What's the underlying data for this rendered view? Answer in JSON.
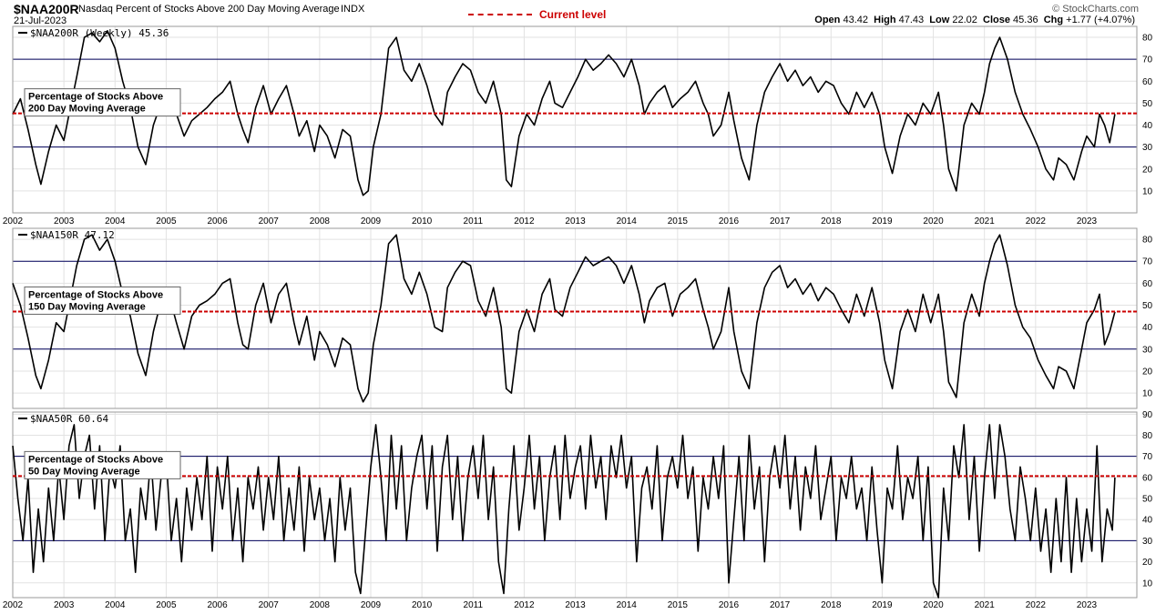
{
  "header": {
    "symbol": "$NAA200R",
    "description": "Nasdaq Percent of Stocks Above 200 Day Moving Average",
    "exchange": "INDX",
    "date": "21-Jul-2023",
    "legend_label": "Current level",
    "copyright": "© StockCharts.com",
    "quote": {
      "open_label": "Open",
      "open": "43.42",
      "high_label": "High",
      "high": "47.43",
      "low_label": "Low",
      "low": "22.02",
      "close_label": "Close",
      "close": "45.36",
      "chg_label": "Chg",
      "chg": "+1.77 (+4.07%)"
    }
  },
  "colors": {
    "current_level": "#cc0000",
    "level_line": "#00005a",
    "series": "#000000"
  },
  "chart_data": [
    {
      "type": "line",
      "panel_label": "$NAA200R (Weekly) 45.36",
      "annotation": [
        "Percentage of Stocks Above",
        "200 Day Moving Average"
      ],
      "ylim": [
        0,
        85
      ],
      "yticks": [
        10,
        20,
        30,
        40,
        50,
        60,
        70,
        80
      ],
      "reference_lines": [
        30,
        70
      ],
      "current_level": 45.36,
      "x_tick_labels": [
        "2002",
        "2003",
        "2004",
        "2005",
        "2006",
        "2007",
        "2008",
        "2009",
        "2010",
        "2011",
        "2012",
        "2013",
        "2014",
        "2015",
        "2016",
        "2017",
        "2018",
        "2019",
        "2020",
        "2021",
        "2022",
        "2023"
      ],
      "x": [
        2002.0,
        2002.15,
        2002.3,
        2002.45,
        2002.55,
        2002.7,
        2002.85,
        2003.0,
        2003.1,
        2003.25,
        2003.4,
        2003.55,
        2003.7,
        2003.85,
        2004.0,
        2004.15,
        2004.3,
        2004.45,
        2004.6,
        2004.75,
        2004.9,
        2005.05,
        2005.2,
        2005.35,
        2005.5,
        2005.65,
        2005.8,
        2005.95,
        2006.1,
        2006.25,
        2006.4,
        2006.5,
        2006.6,
        2006.75,
        2006.9,
        2007.05,
        2007.2,
        2007.35,
        2007.5,
        2007.6,
        2007.75,
        2007.9,
        2008.0,
        2008.15,
        2008.3,
        2008.45,
        2008.6,
        2008.75,
        2008.85,
        2008.95,
        2009.05,
        2009.2,
        2009.35,
        2009.5,
        2009.65,
        2009.8,
        2009.95,
        2010.1,
        2010.25,
        2010.4,
        2010.5,
        2010.65,
        2010.8,
        2010.95,
        2011.1,
        2011.25,
        2011.4,
        2011.55,
        2011.65,
        2011.75,
        2011.9,
        2012.05,
        2012.2,
        2012.35,
        2012.5,
        2012.6,
        2012.75,
        2012.9,
        2013.05,
        2013.2,
        2013.35,
        2013.5,
        2013.65,
        2013.8,
        2013.95,
        2014.1,
        2014.25,
        2014.35,
        2014.45,
        2014.6,
        2014.75,
        2014.9,
        2015.05,
        2015.2,
        2015.35,
        2015.5,
        2015.6,
        2015.7,
        2015.85,
        2016.0,
        2016.1,
        2016.25,
        2016.4,
        2016.55,
        2016.7,
        2016.85,
        2017.0,
        2017.15,
        2017.3,
        2017.45,
        2017.6,
        2017.75,
        2017.9,
        2018.05,
        2018.2,
        2018.35,
        2018.5,
        2018.65,
        2018.8,
        2018.95,
        2019.05,
        2019.2,
        2019.35,
        2019.5,
        2019.65,
        2019.8,
        2019.95,
        2020.1,
        2020.2,
        2020.3,
        2020.45,
        2020.6,
        2020.75,
        2020.9,
        2021.0,
        2021.1,
        2021.2,
        2021.3,
        2021.45,
        2021.6,
        2021.75,
        2021.9,
        2022.05,
        2022.2,
        2022.35,
        2022.45,
        2022.6,
        2022.75,
        2022.9,
        2023.0,
        2023.15,
        2023.25,
        2023.35,
        2023.45,
        2023.55
      ],
      "values": [
        45,
        52,
        38,
        22,
        13,
        28,
        40,
        33,
        45,
        62,
        80,
        82,
        78,
        83,
        75,
        60,
        48,
        30,
        22,
        40,
        50,
        52,
        45,
        35,
        42,
        45,
        48,
        52,
        55,
        60,
        45,
        38,
        32,
        48,
        58,
        45,
        52,
        58,
        45,
        35,
        42,
        28,
        40,
        35,
        25,
        38,
        35,
        15,
        8,
        10,
        30,
        45,
        75,
        80,
        65,
        60,
        68,
        58,
        45,
        40,
        55,
        62,
        68,
        65,
        55,
        50,
        60,
        45,
        15,
        12,
        35,
        45,
        40,
        52,
        60,
        50,
        48,
        55,
        62,
        70,
        65,
        68,
        72,
        68,
        62,
        70,
        58,
        45,
        50,
        55,
        58,
        48,
        52,
        55,
        60,
        50,
        45,
        35,
        40,
        55,
        42,
        25,
        15,
        40,
        55,
        62,
        68,
        60,
        65,
        58,
        62,
        55,
        60,
        58,
        50,
        45,
        55,
        48,
        55,
        45,
        30,
        18,
        35,
        45,
        40,
        50,
        45,
        55,
        40,
        20,
        10,
        40,
        50,
        45,
        55,
        68,
        75,
        80,
        70,
        55,
        45,
        38,
        30,
        20,
        15,
        25,
        22,
        15,
        28,
        35,
        30,
        45,
        40,
        32,
        45
      ]
    },
    {
      "type": "line",
      "panel_label": "$NAA150R 47.12",
      "annotation": [
        "Percentage of Stocks Above",
        "150 Day Moving Average"
      ],
      "ylim": [
        3,
        85
      ],
      "yticks": [
        10,
        20,
        30,
        40,
        50,
        60,
        70,
        80
      ],
      "reference_lines": [
        30,
        70
      ],
      "current_level": 47.12,
      "x_tick_labels": [],
      "x": [
        2002.0,
        2002.15,
        2002.3,
        2002.45,
        2002.55,
        2002.7,
        2002.85,
        2003.0,
        2003.1,
        2003.25,
        2003.4,
        2003.55,
        2003.7,
        2003.85,
        2004.0,
        2004.15,
        2004.3,
        2004.45,
        2004.6,
        2004.75,
        2004.9,
        2005.05,
        2005.2,
        2005.35,
        2005.5,
        2005.65,
        2005.8,
        2005.95,
        2006.1,
        2006.25,
        2006.4,
        2006.5,
        2006.6,
        2006.75,
        2006.9,
        2007.05,
        2007.2,
        2007.35,
        2007.5,
        2007.6,
        2007.75,
        2007.9,
        2008.0,
        2008.15,
        2008.3,
        2008.45,
        2008.6,
        2008.75,
        2008.85,
        2008.95,
        2009.05,
        2009.2,
        2009.35,
        2009.5,
        2009.65,
        2009.8,
        2009.95,
        2010.1,
        2010.25,
        2010.4,
        2010.5,
        2010.65,
        2010.8,
        2010.95,
        2011.1,
        2011.25,
        2011.4,
        2011.55,
        2011.65,
        2011.75,
        2011.9,
        2012.05,
        2012.2,
        2012.35,
        2012.5,
        2012.6,
        2012.75,
        2012.9,
        2013.05,
        2013.2,
        2013.35,
        2013.5,
        2013.65,
        2013.8,
        2013.95,
        2014.1,
        2014.25,
        2014.35,
        2014.45,
        2014.6,
        2014.75,
        2014.9,
        2015.05,
        2015.2,
        2015.35,
        2015.5,
        2015.6,
        2015.7,
        2015.85,
        2016.0,
        2016.1,
        2016.25,
        2016.4,
        2016.55,
        2016.7,
        2016.85,
        2017.0,
        2017.15,
        2017.3,
        2017.45,
        2017.6,
        2017.75,
        2017.9,
        2018.05,
        2018.2,
        2018.35,
        2018.5,
        2018.65,
        2018.8,
        2018.95,
        2019.05,
        2019.2,
        2019.35,
        2019.5,
        2019.65,
        2019.8,
        2019.95,
        2020.1,
        2020.2,
        2020.3,
        2020.45,
        2020.6,
        2020.75,
        2020.9,
        2021.0,
        2021.1,
        2021.2,
        2021.3,
        2021.45,
        2021.6,
        2021.75,
        2021.9,
        2022.05,
        2022.2,
        2022.35,
        2022.45,
        2022.6,
        2022.75,
        2022.9,
        2023.0,
        2023.15,
        2023.25,
        2023.35,
        2023.45,
        2023.55
      ],
      "values": [
        60,
        50,
        35,
        18,
        12,
        25,
        42,
        38,
        50,
        68,
        80,
        82,
        75,
        80,
        70,
        55,
        45,
        28,
        18,
        38,
        52,
        55,
        42,
        30,
        45,
        50,
        52,
        55,
        60,
        62,
        42,
        32,
        30,
        50,
        60,
        42,
        55,
        60,
        42,
        32,
        45,
        25,
        38,
        32,
        22,
        35,
        32,
        12,
        6,
        10,
        32,
        50,
        78,
        82,
        62,
        55,
        65,
        55,
        40,
        38,
        58,
        65,
        70,
        68,
        52,
        45,
        58,
        40,
        12,
        10,
        38,
        48,
        38,
        55,
        62,
        48,
        45,
        58,
        65,
        72,
        68,
        70,
        72,
        68,
        60,
        68,
        55,
        42,
        52,
        58,
        60,
        45,
        55,
        58,
        62,
        48,
        40,
        30,
        38,
        58,
        38,
        20,
        12,
        42,
        58,
        65,
        68,
        58,
        62,
        55,
        60,
        52,
        58,
        55,
        48,
        42,
        55,
        45,
        58,
        42,
        25,
        12,
        38,
        48,
        38,
        55,
        42,
        55,
        38,
        15,
        8,
        42,
        55,
        45,
        60,
        70,
        78,
        82,
        68,
        50,
        40,
        35,
        25,
        18,
        12,
        22,
        20,
        12,
        30,
        42,
        48,
        55,
        32,
        38,
        47
      ]
    },
    {
      "type": "line",
      "panel_label": "$NAA50R 60.64",
      "annotation": [
        "Percentage of Stocks Above",
        "50 Day Moving Average"
      ],
      "ylim": [
        3,
        91
      ],
      "yticks": [
        10,
        20,
        30,
        40,
        50,
        60,
        70,
        80,
        90
      ],
      "reference_lines": [
        30,
        70
      ],
      "current_level": 60.64,
      "x_tick_labels": [
        "2002",
        "2003",
        "2004",
        "2005",
        "2006",
        "2007",
        "2008",
        "2009",
        "2010",
        "2011",
        "2012",
        "2013",
        "2014",
        "2015",
        "2016",
        "2017",
        "2018",
        "2019",
        "2020",
        "2021",
        "2022",
        "2023"
      ],
      "x": [
        2002.0,
        2002.1,
        2002.2,
        2002.3,
        2002.4,
        2002.5,
        2002.6,
        2002.7,
        2002.8,
        2002.9,
        2003.0,
        2003.1,
        2003.2,
        2003.3,
        2003.4,
        2003.5,
        2003.6,
        2003.7,
        2003.8,
        2003.9,
        2004.0,
        2004.1,
        2004.2,
        2004.3,
        2004.4,
        2004.5,
        2004.6,
        2004.7,
        2004.8,
        2004.9,
        2005.0,
        2005.1,
        2005.2,
        2005.3,
        2005.4,
        2005.5,
        2005.6,
        2005.7,
        2005.8,
        2005.9,
        2006.0,
        2006.1,
        2006.2,
        2006.3,
        2006.4,
        2006.5,
        2006.6,
        2006.7,
        2006.8,
        2006.9,
        2007.0,
        2007.1,
        2007.2,
        2007.3,
        2007.4,
        2007.5,
        2007.6,
        2007.7,
        2007.8,
        2007.9,
        2008.0,
        2008.1,
        2008.2,
        2008.3,
        2008.4,
        2008.5,
        2008.6,
        2008.7,
        2008.8,
        2008.9,
        2009.0,
        2009.1,
        2009.2,
        2009.3,
        2009.4,
        2009.5,
        2009.6,
        2009.7,
        2009.8,
        2009.9,
        2010.0,
        2010.1,
        2010.2,
        2010.3,
        2010.4,
        2010.5,
        2010.6,
        2010.7,
        2010.8,
        2010.9,
        2011.0,
        2011.1,
        2011.2,
        2011.3,
        2011.4,
        2011.5,
        2011.6,
        2011.7,
        2011.8,
        2011.9,
        2012.0,
        2012.1,
        2012.2,
        2012.3,
        2012.4,
        2012.5,
        2012.6,
        2012.7,
        2012.8,
        2012.9,
        2013.0,
        2013.1,
        2013.2,
        2013.3,
        2013.4,
        2013.5,
        2013.6,
        2013.7,
        2013.8,
        2013.9,
        2014.0,
        2014.1,
        2014.2,
        2014.3,
        2014.4,
        2014.5,
        2014.6,
        2014.7,
        2014.8,
        2014.9,
        2015.0,
        2015.1,
        2015.2,
        2015.3,
        2015.4,
        2015.5,
        2015.6,
        2015.7,
        2015.8,
        2015.9,
        2016.0,
        2016.1,
        2016.2,
        2016.3,
        2016.4,
        2016.5,
        2016.6,
        2016.7,
        2016.8,
        2016.9,
        2017.0,
        2017.1,
        2017.2,
        2017.3,
        2017.4,
        2017.5,
        2017.6,
        2017.7,
        2017.8,
        2017.9,
        2018.0,
        2018.1,
        2018.2,
        2018.3,
        2018.4,
        2018.5,
        2018.6,
        2018.7,
        2018.8,
        2018.9,
        2019.0,
        2019.1,
        2019.2,
        2019.3,
        2019.4,
        2019.5,
        2019.6,
        2019.7,
        2019.8,
        2019.9,
        2020.0,
        2020.1,
        2020.2,
        2020.3,
        2020.4,
        2020.5,
        2020.6,
        2020.7,
        2020.8,
        2020.9,
        2021.0,
        2021.1,
        2021.2,
        2021.3,
        2021.4,
        2021.5,
        2021.6,
        2021.7,
        2021.8,
        2021.9,
        2022.0,
        2022.1,
        2022.2,
        2022.3,
        2022.4,
        2022.5,
        2022.6,
        2022.7,
        2022.8,
        2022.9,
        2023.0,
        2023.1,
        2023.2,
        2023.3,
        2023.4,
        2023.5,
        2023.55
      ],
      "values": [
        75,
        50,
        30,
        60,
        15,
        45,
        20,
        55,
        30,
        65,
        40,
        75,
        85,
        50,
        70,
        80,
        45,
        75,
        30,
        65,
        55,
        75,
        30,
        45,
        15,
        55,
        40,
        70,
        35,
        60,
        70,
        30,
        50,
        20,
        55,
        35,
        60,
        40,
        70,
        25,
        65,
        45,
        70,
        30,
        55,
        20,
        60,
        45,
        65,
        35,
        60,
        40,
        70,
        30,
        55,
        35,
        65,
        25,
        60,
        40,
        55,
        30,
        50,
        20,
        60,
        35,
        55,
        15,
        5,
        35,
        65,
        85,
        60,
        30,
        80,
        45,
        75,
        30,
        55,
        70,
        80,
        45,
        75,
        25,
        65,
        80,
        40,
        70,
        30,
        60,
        75,
        50,
        80,
        40,
        65,
        20,
        5,
        45,
        75,
        35,
        55,
        80,
        45,
        70,
        30,
        60,
        75,
        40,
        80,
        50,
        65,
        75,
        45,
        80,
        55,
        70,
        40,
        75,
        60,
        80,
        55,
        70,
        20,
        55,
        65,
        45,
        75,
        30,
        60,
        70,
        55,
        80,
        50,
        65,
        25,
        60,
        45,
        70,
        50,
        75,
        10,
        40,
        70,
        30,
        80,
        45,
        65,
        20,
        60,
        75,
        55,
        80,
        45,
        70,
        35,
        65,
        50,
        75,
        40,
        55,
        70,
        30,
        60,
        50,
        70,
        45,
        55,
        30,
        65,
        35,
        10,
        55,
        45,
        75,
        40,
        60,
        50,
        70,
        30,
        65,
        10,
        3,
        55,
        30,
        75,
        60,
        85,
        40,
        70,
        25,
        60,
        85,
        50,
        85,
        70,
        45,
        30,
        65,
        50,
        30,
        55,
        25,
        45,
        15,
        50,
        20,
        60,
        15,
        50,
        20,
        45,
        25,
        75,
        20,
        45,
        35,
        60
      ]
    }
  ]
}
